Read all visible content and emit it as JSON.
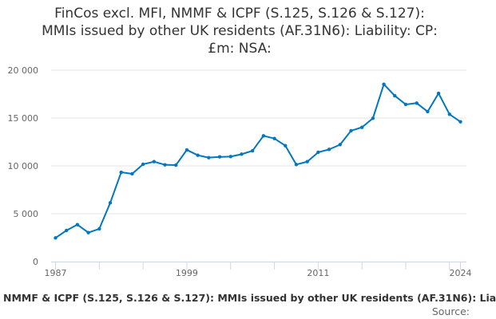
{
  "chart_data": {
    "type": "line",
    "title": "FinCos excl. MFI, NMMF & ICPF (S.125, S.126 & S.127): MMIs issued by other UK residents (AF.31N6): Liability: CP: £m: NSA:",
    "title_lines": [
      "FinCos excl. MFI, NMMF & ICPF (S.125, S.126 & S.127):",
      "MMIs issued by other UK residents (AF.31N6): Liability: CP:",
      "£m: NSA:"
    ],
    "x": [
      1987,
      1988,
      1989,
      1990,
      1991,
      1992,
      1993,
      1994,
      1995,
      1996,
      1997,
      1998,
      1999,
      2000,
      2001,
      2002,
      2003,
      2004,
      2005,
      2006,
      2007,
      2008,
      2009,
      2010,
      2011,
      2012,
      2013,
      2014,
      2015,
      2016,
      2017,
      2018,
      2019,
      2020,
      2021,
      2022,
      2023,
      2024
    ],
    "values": [
      2470,
      3250,
      3860,
      3030,
      3420,
      6140,
      9330,
      9170,
      10170,
      10440,
      10110,
      10080,
      11670,
      11110,
      10860,
      10940,
      10970,
      11220,
      11580,
      13140,
      12860,
      12110,
      10140,
      10440,
      11420,
      11720,
      12220,
      13670,
      14030,
      14970,
      18530,
      17330,
      16420,
      16560,
      15670,
      17580,
      15390,
      14610
    ],
    "xlim": [
      1987,
      2024
    ],
    "ylim": [
      0,
      20000
    ],
    "x_tick_labels": [
      "1987",
      "1999",
      "2011",
      "2024"
    ],
    "y_tick_labels": [
      "0",
      "5 000",
      "10 000",
      "15 000",
      "20 000"
    ],
    "y_ticks": [
      0,
      5000,
      10000,
      15000,
      20000
    ],
    "grid": true,
    "line_color": "#0077c0",
    "footer_text": "NMMF & ICPF (S.125, S.126 & S.127): MMIs issued by other UK residents (AF.31N6): Lia",
    "source_label": "Source:"
  }
}
